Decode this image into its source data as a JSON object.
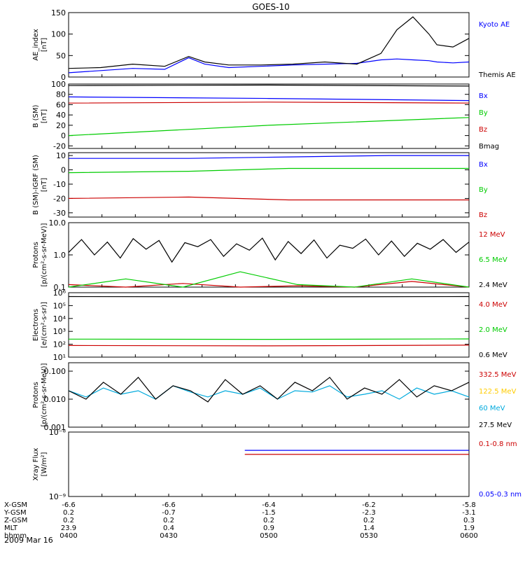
{
  "title": "GOES-10",
  "date_label": "2009 Mar 16",
  "colors": {
    "black": "#000000",
    "blue": "#0000ff",
    "green": "#00cc00",
    "red": "#cc0000",
    "cyan": "#00aadd",
    "yellow": "#ffcc00",
    "purple": "#8800aa"
  },
  "chart_data": [
    {
      "type": "line",
      "name": "ae",
      "ylabel": [
        "AE_index",
        "[nT]"
      ],
      "ylim": [
        0,
        150
      ],
      "yticks": [
        "0",
        "50",
        "100",
        "150"
      ],
      "tick_values": [
        0,
        50,
        100,
        150
      ],
      "log": false,
      "x": [
        0.0,
        0.08,
        0.16,
        0.24,
        0.3,
        0.34,
        0.4,
        0.48,
        0.56,
        0.64,
        0.72,
        0.78,
        0.82,
        0.86,
        0.9,
        0.92,
        0.96,
        1.0
      ],
      "series": [
        {
          "name": "Kyoto AE",
          "color": "blue",
          "values": [
            10,
            15,
            20,
            18,
            45,
            30,
            22,
            25,
            28,
            30,
            32,
            40,
            42,
            40,
            38,
            35,
            33,
            35
          ]
        },
        {
          "name": "Themis AE",
          "color": "black",
          "values": [
            20,
            22,
            30,
            25,
            48,
            35,
            28,
            28,
            30,
            35,
            30,
            55,
            110,
            140,
            100,
            75,
            70,
            90
          ]
        }
      ]
    },
    {
      "type": "line",
      "name": "b-sm",
      "ylabel": [
        "B (SM)",
        "[nT]"
      ],
      "ylim": [
        -25,
        100
      ],
      "yticks": [
        "-20",
        "0",
        "20",
        "40",
        "60",
        "80",
        "100"
      ],
      "tick_values": [
        -20,
        0,
        20,
        40,
        60,
        80,
        100
      ],
      "log": false,
      "x": [
        0,
        0.5,
        1
      ],
      "series": [
        {
          "name": "Bx",
          "color": "blue",
          "values": [
            75,
            72,
            68
          ]
        },
        {
          "name": "By",
          "color": "green",
          "values": [
            0,
            20,
            35
          ]
        },
        {
          "name": "Bz",
          "color": "red",
          "values": [
            63,
            65,
            63
          ]
        },
        {
          "name": "Bmag",
          "color": "black",
          "values": [
            97,
            98,
            96
          ]
        }
      ]
    },
    {
      "type": "line",
      "name": "b-igrf",
      "ylabel": [
        "B (SM)-IGRF (SM)",
        "[nT]"
      ],
      "ylim": [
        -33,
        12
      ],
      "yticks": [
        "-30",
        "-20",
        "-10",
        "0",
        "10"
      ],
      "tick_values": [
        -30,
        -20,
        -10,
        0,
        10
      ],
      "log": false,
      "x": [
        0,
        0.3,
        0.55,
        0.8,
        1
      ],
      "series": [
        {
          "name": "Bx",
          "color": "blue",
          "values": [
            8,
            8,
            9,
            10,
            10
          ]
        },
        {
          "name": "By",
          "color": "green",
          "values": [
            -2,
            -1,
            1,
            1,
            1
          ]
        },
        {
          "name": "Bz",
          "color": "red",
          "values": [
            -20,
            -19,
            -21,
            -21,
            -21
          ]
        }
      ]
    },
    {
      "type": "line",
      "name": "protons-low",
      "ylabel": [
        "Protons",
        "[p/(cm²-s-sr-MeV)]"
      ],
      "ylim": [
        0.1,
        10
      ],
      "yticks": [
        "0.1",
        "1.0",
        "10.0"
      ],
      "tick_values": [
        0.1,
        1,
        10
      ],
      "log": true,
      "series": [
        {
          "name": "12 MeV",
          "color": "red",
          "values": [
            0.12,
            0.1,
            0.13,
            0.1,
            0.11,
            0.1,
            0.15,
            0.1
          ]
        },
        {
          "name": "6.5 MeV",
          "color": "green",
          "values": [
            0.1,
            0.18,
            0.1,
            0.3,
            0.12,
            0.1,
            0.18,
            0.1
          ]
        },
        {
          "name": "2.4 MeV",
          "color": "black",
          "values": [
            1.2,
            3.0,
            1.0,
            2.5,
            0.8,
            3.2,
            1.5,
            2.8,
            0.6,
            2.4,
            1.8,
            3.0,
            0.9,
            2.2,
            1.4,
            3.3,
            0.7,
            2.6,
            1.1,
            2.9,
            0.8,
            2.0,
            1.6,
            3.1,
            1.0,
            2.7,
            0.9,
            2.3,
            1.5,
            3.0,
            1.2,
            2.5
          ]
        }
      ]
    },
    {
      "type": "line",
      "name": "electrons",
      "ylabel": [
        "Electrons",
        "[e/(cm²-s-sr)]"
      ],
      "ylim": [
        10,
        1000000
      ],
      "yticks": [
        "10¹",
        "10²",
        "10³",
        "10⁴",
        "10⁵",
        "10⁶"
      ],
      "tick_values": [
        10,
        100,
        1000,
        10000,
        100000,
        1000000
      ],
      "log": true,
      "x": [
        0,
        0.5,
        1
      ],
      "series": [
        {
          "name": "4.0 MeV",
          "color": "red",
          "values": [
            80,
            75,
            85
          ]
        },
        {
          "name": "2.0 MeV",
          "color": "green",
          "values": [
            250,
            240,
            260
          ]
        },
        {
          "name": "0.6 MeV",
          "color": "black",
          "values": [
            500000,
            480000,
            500000
          ]
        }
      ]
    },
    {
      "type": "line",
      "name": "protons-high",
      "ylabel": [
        "Protons",
        "[p/(cm²-s-sr-MeV)]"
      ],
      "ylim": [
        0.001,
        0.2
      ],
      "yticks": [
        "0.001",
        "0.010",
        "0.100"
      ],
      "tick_values": [
        0.001,
        0.01,
        0.1
      ],
      "log": true,
      "series": [
        {
          "name": "332.5 MeV",
          "color": "red",
          "values": []
        },
        {
          "name": "122.5 MeV",
          "color": "yellow",
          "values": []
        },
        {
          "name": "60 MeV",
          "color": "cyan",
          "values": [
            0.02,
            0.012,
            0.025,
            0.015,
            0.02,
            0.01,
            0.03,
            0.018,
            0.012,
            0.02,
            0.015,
            0.025,
            0.01,
            0.02,
            0.018,
            0.03,
            0.012,
            0.015,
            0.02,
            0.01,
            0.025,
            0.015,
            0.02,
            0.012
          ]
        },
        {
          "name": "27.5 MeV",
          "color": "black",
          "values": [
            0.02,
            0.01,
            0.04,
            0.015,
            0.06,
            0.01,
            0.03,
            0.02,
            0.008,
            0.05,
            0.015,
            0.03,
            0.01,
            0.04,
            0.02,
            0.06,
            0.01,
            0.025,
            0.015,
            0.05,
            0.012,
            0.03,
            0.02,
            0.04
          ]
        }
      ]
    },
    {
      "type": "line",
      "name": "xray",
      "ylabel": [
        "Xray Flux",
        "[W/m²]"
      ],
      "ylim": [
        1e-09,
        1e-08
      ],
      "yticks": [
        "10⁻⁹",
        "10⁻⁸"
      ],
      "tick_values": [
        1e-09,
        1e-08
      ],
      "log": true,
      "x": [
        0.44,
        1
      ],
      "series": [
        {
          "name": "0.1-0.8 nm",
          "color": "red",
          "values": [
            4.5e-09,
            4.5e-09
          ]
        },
        {
          "name": "0.05-0.3 nm",
          "color": "blue",
          "values": [
            5.2e-09,
            5.2e-09
          ]
        }
      ]
    }
  ],
  "axis_table": {
    "rows": [
      {
        "label": "X-GSM",
        "values": [
          "-6.6",
          "-6.6",
          "-6.4",
          "-6.2",
          "-5.8"
        ]
      },
      {
        "label": "Y-GSM",
        "values": [
          "0.2",
          "-0.7",
          "-1.5",
          "-2.3",
          "-3.1"
        ]
      },
      {
        "label": "Z-GSM",
        "values": [
          "0.2",
          "0.2",
          "0.2",
          "0.2",
          "0.3"
        ]
      },
      {
        "label": "MLT",
        "values": [
          "23.9",
          "0.4",
          "0.9",
          "1.4",
          "1.9"
        ]
      },
      {
        "label": "hhmm",
        "values": [
          "0400",
          "0430",
          "0500",
          "0530",
          "0600"
        ]
      }
    ]
  }
}
